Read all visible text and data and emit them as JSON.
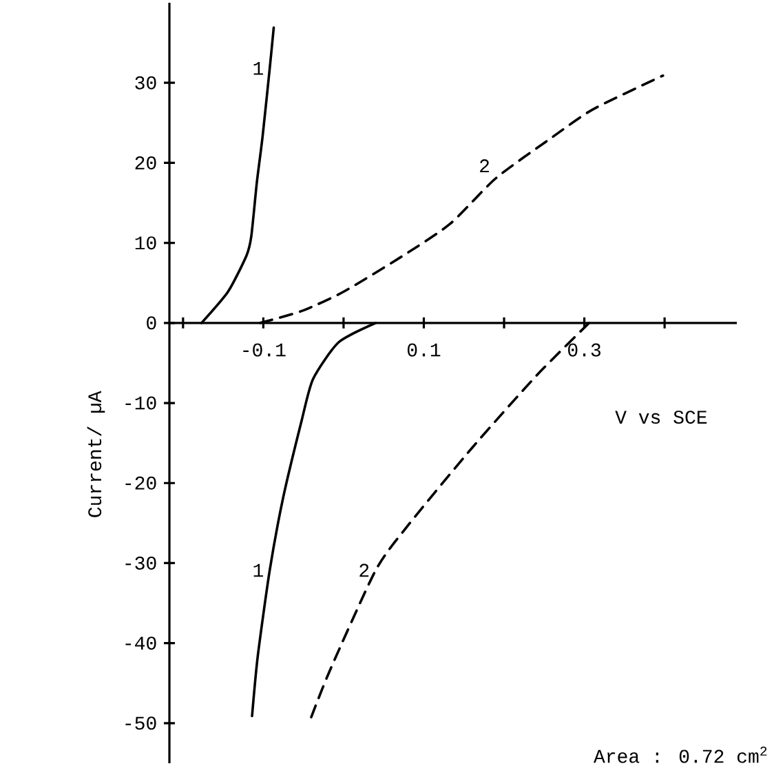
{
  "chart_data": {
    "type": "line",
    "xlabel": "V vs SCE",
    "ylabel": "Current/ µA",
    "annotations": [
      "Area : 0.72 cm$^{2}$"
    ],
    "xlim": [
      -0.217,
      0.49
    ],
    "ylim": [
      -55,
      40
    ],
    "xticks": [
      {
        "value": -0.2,
        "label": null
      },
      -0.1,
      {
        "value": 0,
        "label": null
      },
      0.1,
      {
        "value": 0.2,
        "label": null
      },
      0.3,
      {
        "value": 0.4,
        "label": null
      }
    ],
    "yticks": [
      -50,
      -40,
      -30,
      -20,
      -10,
      0,
      10,
      20,
      30
    ],
    "series": [
      {
        "name": "1",
        "color": "#000000",
        "line_style": "solid",
        "x": [
          -0.177,
          -0.144,
          -0.121,
          -0.115,
          -0.108,
          -0.101,
          -0.092,
          -0.087
        ],
        "values": [
          0,
          3.9,
          8.4,
          10.8,
          17.6,
          23.2,
          31.8,
          36.9
        ]
      },
      {
        "name": "2",
        "color": "#000000",
        "line_style": "dashed",
        "x": [
          -0.104,
          -0.052,
          0,
          0.074,
          0.133,
          0.19,
          0.26,
          0.311,
          0.398
        ],
        "values": [
          0,
          1.5,
          3.9,
          8.4,
          12.4,
          18.1,
          23.2,
          26.7,
          30.9
        ]
      },
      {
        "name": "1",
        "color": "#000000",
        "line_style": "solid",
        "x": [
          0.04,
          -0.006,
          -0.038,
          -0.052,
          -0.075,
          -0.092,
          -0.107,
          -0.114
        ],
        "values": [
          0,
          -2.4,
          -7.0,
          -12.1,
          -21.7,
          -30.9,
          -41.7,
          -49.1
        ]
      },
      {
        "name": "2",
        "color": "#000000",
        "line_style": "dashed",
        "x": [
          0.306,
          0.242,
          0.161,
          0.081,
          0.04,
          -0.017,
          -0.042
        ],
        "values": [
          0,
          -6.4,
          -15.5,
          -25.2,
          -30.9,
          -43.4,
          -49.7
        ]
      }
    ]
  }
}
